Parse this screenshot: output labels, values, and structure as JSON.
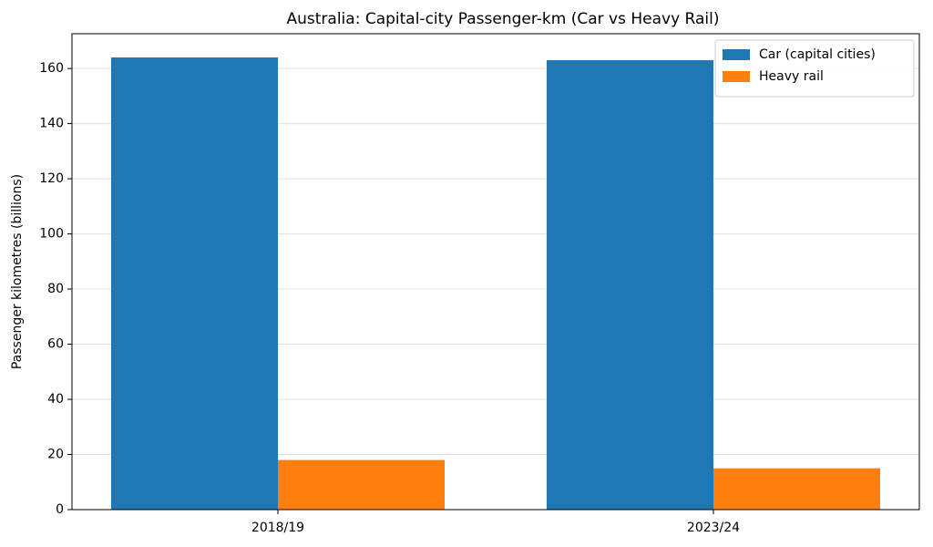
{
  "chart_data": {
    "type": "bar",
    "title": "Australia: Capital-city Passenger-km (Car vs Heavy Rail)",
    "y_label": "Passenger kilometres (billions)",
    "categories": [
      "2018/19",
      "2023/24"
    ],
    "series": [
      {
        "name": "Car (capital cities)",
        "color": "#1f77b4",
        "values": [
          164,
          163
        ]
      },
      {
        "name": "Heavy rail",
        "color": "#ff7f0e",
        "values": [
          18,
          15
        ]
      }
    ],
    "ylim": [
      0,
      172.6
    ],
    "yticks": [
      0,
      20,
      40,
      60,
      80,
      100,
      120,
      140,
      160
    ],
    "grid": true,
    "legend": "upper-right"
  }
}
